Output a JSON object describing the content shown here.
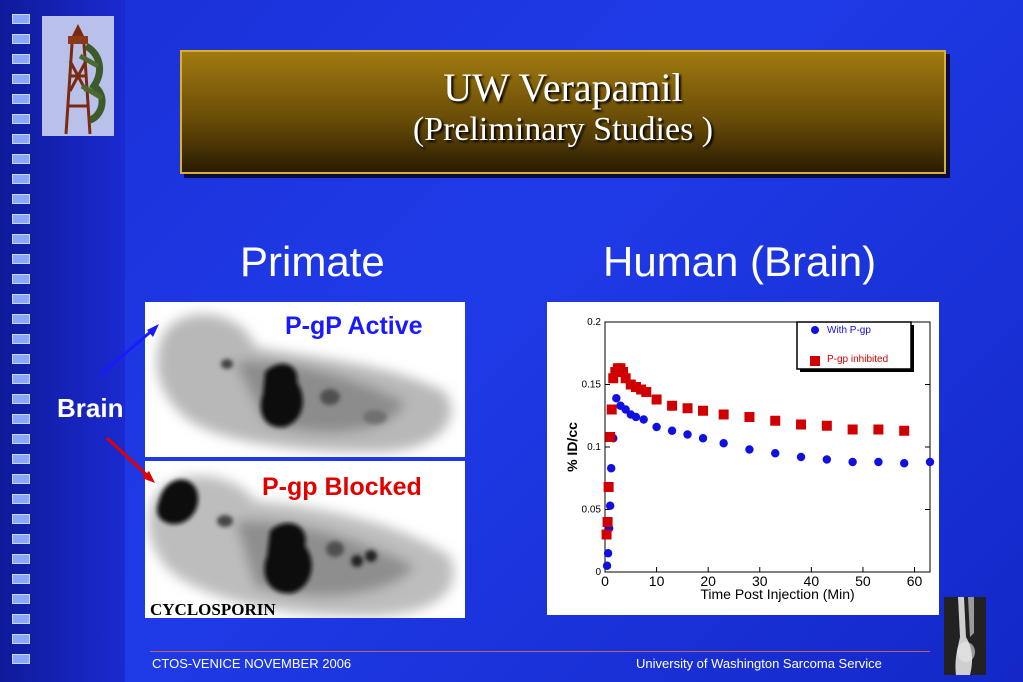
{
  "slide": {
    "title": "UW Verapamil",
    "subtitle": "(Preliminary Studies )",
    "headings": {
      "left": "Primate",
      "right": "Human (Brain)"
    },
    "scans": {
      "top_label": "P-gP Active",
      "bottom_label": "P-gp Blocked",
      "bottom_caption": "CYCLOSPORIN",
      "arrow_label": "Brain"
    },
    "footer": {
      "left": "CTOS-VENICE  NOVEMBER 2006",
      "right": "University  of Washington Sarcoma Service"
    },
    "colors": {
      "active": "#1a1aff",
      "blocked": "#e00000",
      "title_gold": "#a07a10"
    }
  },
  "chart_data": {
    "type": "scatter",
    "xlabel": "Time Post Injection (Min)",
    "ylabel": "% ID/cc",
    "xlim": [
      0,
      63
    ],
    "ylim": [
      0,
      0.2
    ],
    "xticks": [
      0,
      10,
      20,
      30,
      40,
      50,
      60
    ],
    "yticks": [
      0,
      0.05,
      0.1,
      0.15,
      0.2
    ],
    "ytick_labels": [
      "0",
      "0.05",
      "0.1",
      "0.15",
      "0.2"
    ],
    "legend_position": "top-right",
    "series": [
      {
        "name": "With P-gp",
        "color": "#1010e0",
        "marker": "circle",
        "x": [
          0.4,
          0.6,
          0.8,
          1.0,
          1.2,
          1.6,
          2.2,
          3.0,
          4.0,
          5.0,
          6.0,
          7.5,
          10,
          13,
          16,
          19,
          23,
          28,
          33,
          38,
          43,
          48,
          53,
          58,
          63
        ],
        "y": [
          0.005,
          0.015,
          0.035,
          0.053,
          0.083,
          0.107,
          0.139,
          0.133,
          0.13,
          0.126,
          0.124,
          0.122,
          0.116,
          0.113,
          0.11,
          0.107,
          0.103,
          0.098,
          0.095,
          0.092,
          0.09,
          0.088,
          0.088,
          0.087,
          0.088
        ]
      },
      {
        "name": "P-gp inhibited",
        "color": "#d00000",
        "marker": "square",
        "x": [
          0.3,
          0.5,
          0.7,
          1.0,
          1.3,
          1.6,
          2.0,
          2.5,
          3.0,
          3.5,
          4.0,
          5.0,
          6.0,
          7.0,
          8.0,
          10,
          13,
          16,
          19,
          23,
          28,
          33,
          38,
          43,
          48,
          53,
          58
        ],
        "y": [
          0.03,
          0.04,
          0.068,
          0.108,
          0.13,
          0.155,
          0.16,
          0.163,
          0.163,
          0.16,
          0.155,
          0.15,
          0.148,
          0.146,
          0.144,
          0.138,
          0.133,
          0.131,
          0.129,
          0.126,
          0.124,
          0.121,
          0.118,
          0.117,
          0.114,
          0.114,
          0.113
        ]
      }
    ]
  }
}
